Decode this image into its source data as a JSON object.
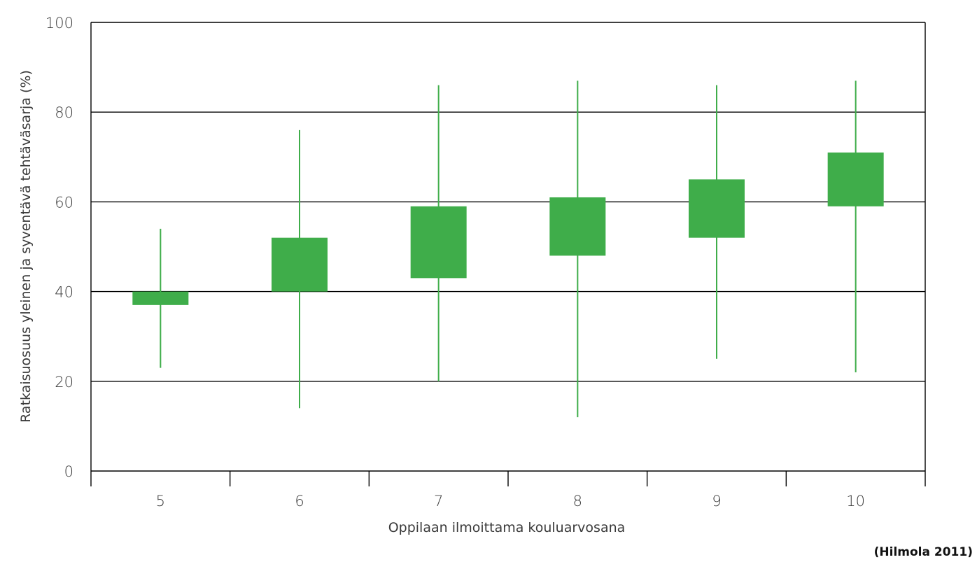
{
  "chart_data": {
    "type": "boxplot",
    "title": "",
    "xlabel": "Oppilaan ilmoittama kouluarvosana",
    "ylabel": "Ratkaisuosuus yleinen ja syventävä tehtäväsarja (%)",
    "ylim": [
      0,
      100
    ],
    "yticks": [
      0,
      20,
      40,
      60,
      80,
      100
    ],
    "categories": [
      "5",
      "6",
      "7",
      "8",
      "9",
      "10"
    ],
    "min": [
      23,
      14,
      20,
      12,
      25,
      22
    ],
    "q1": [
      37,
      40,
      43,
      48,
      52,
      59
    ],
    "q3": [
      40,
      52,
      59,
      61,
      65,
      71
    ],
    "max": [
      54,
      76,
      86,
      87,
      86,
      87
    ],
    "grid": true,
    "color": "#3fad4a"
  },
  "source": "(Hilmola 2011)"
}
